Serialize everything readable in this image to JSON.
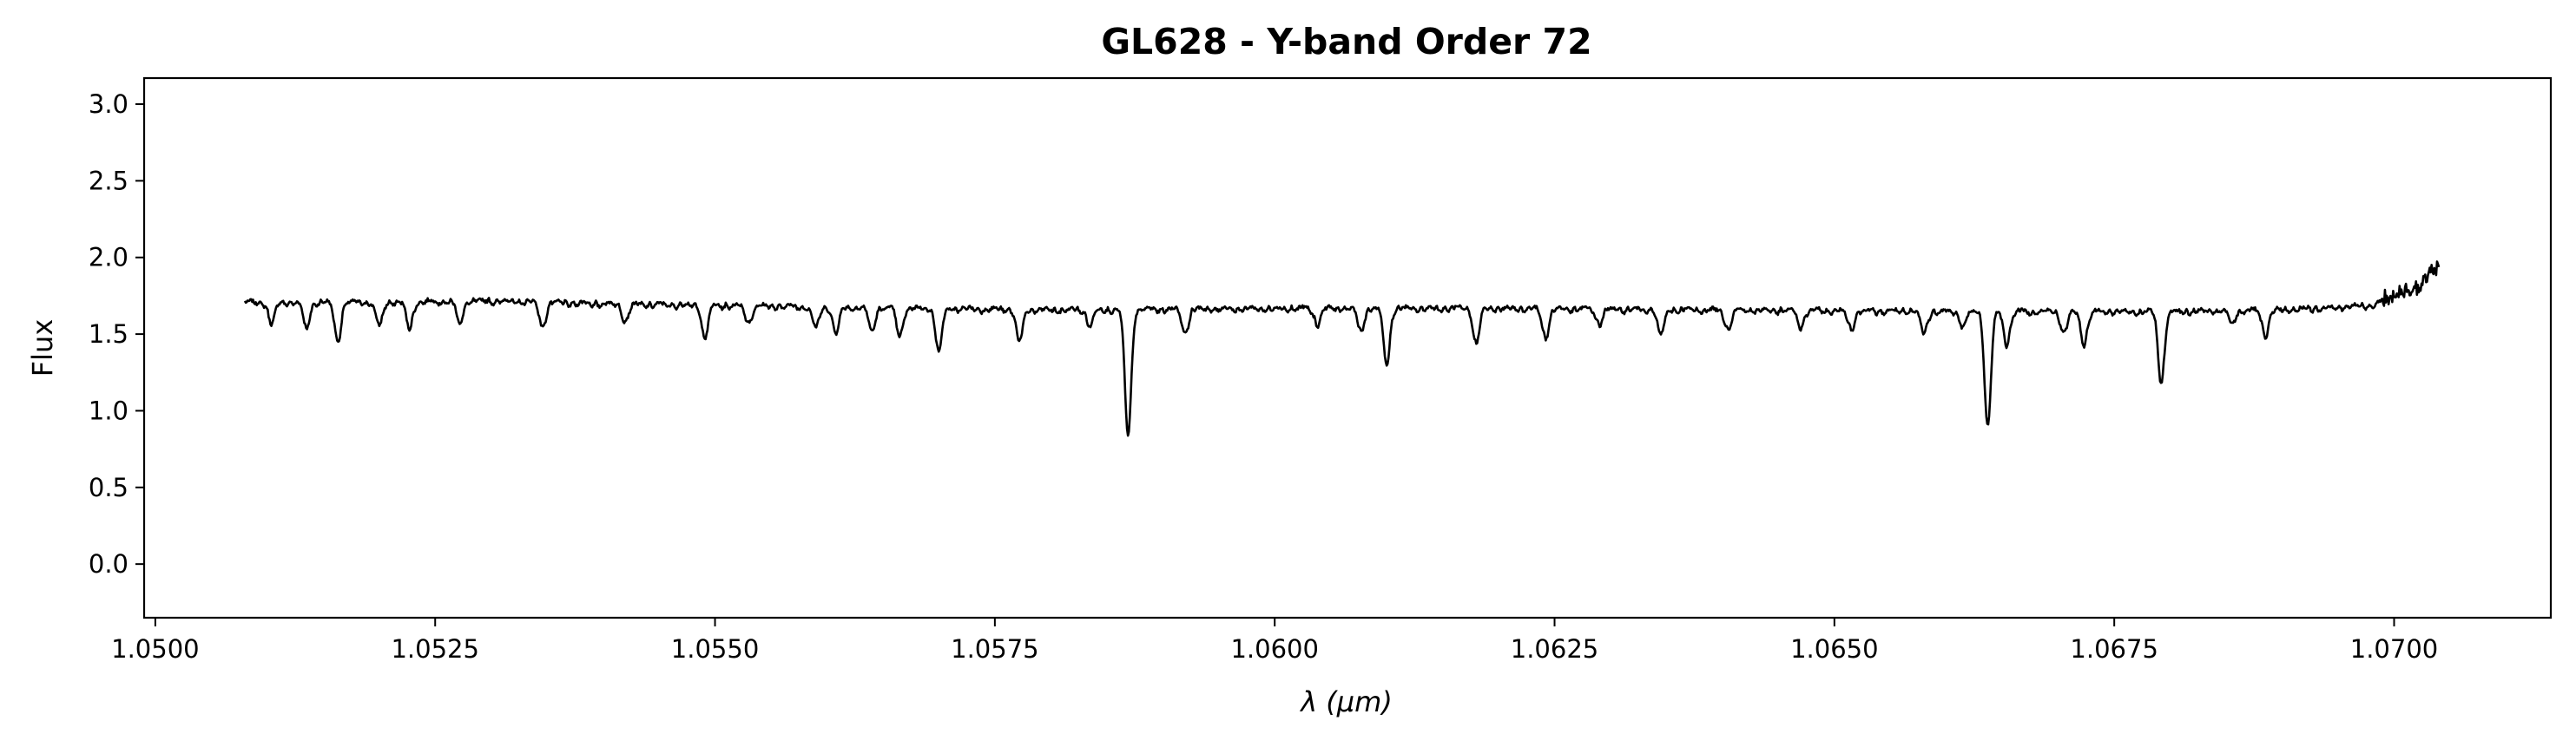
{
  "chart_data": {
    "type": "line",
    "title": "GL628 - Y-band Order 72",
    "xlabel": "λ (μm)",
    "ylabel": "Flux",
    "xlim": [
      1.0499,
      1.0714
    ],
    "ylim": [
      -0.35,
      3.17
    ],
    "xticks": [
      1.05,
      1.0525,
      1.055,
      1.0575,
      1.06,
      1.0625,
      1.065,
      1.0675,
      1.07
    ],
    "xtick_labels": [
      "1.0500",
      "1.0525",
      "1.0550",
      "1.0575",
      "1.0600",
      "1.0625",
      "1.0650",
      "1.0675",
      "1.0700"
    ],
    "yticks": [
      0.0,
      0.5,
      1.0,
      1.5,
      2.0,
      2.5,
      3.0
    ],
    "ytick_labels": [
      "0.0",
      "0.5",
      "1.0",
      "1.5",
      "2.0",
      "2.5",
      "3.0"
    ],
    "grid": false,
    "line_color": "#000000",
    "series": [
      {
        "x_start": 1.0508,
        "x_end": 1.0704,
        "continuum": [
          [
            1.0508,
            1.72
          ],
          [
            1.052,
            1.72
          ],
          [
            1.053,
            1.73
          ],
          [
            1.054,
            1.71
          ],
          [
            1.055,
            1.7
          ],
          [
            1.056,
            1.69
          ],
          [
            1.058,
            1.67
          ],
          [
            1.06,
            1.68
          ],
          [
            1.062,
            1.68
          ],
          [
            1.064,
            1.67
          ],
          [
            1.066,
            1.66
          ],
          [
            1.068,
            1.66
          ],
          [
            1.069,
            1.67
          ],
          [
            1.0698,
            1.7
          ],
          [
            1.0702,
            1.82
          ],
          [
            1.0704,
            1.96
          ]
        ],
        "absorption_lines": [
          [
            1.05869,
            0.85
          ],
          [
            1.06637,
            0.91
          ],
          [
            1.06792,
            1.2
          ],
          [
            1.061,
            1.32
          ],
          [
            1.057,
            1.4
          ],
          [
            1.05163,
            1.47
          ],
          [
            1.05491,
            1.49
          ],
          [
            1.05772,
            1.46
          ],
          [
            1.0618,
            1.45
          ],
          [
            1.06654,
            1.45
          ],
          [
            1.06723,
            1.45
          ],
          [
            1.06885,
            1.5
          ],
          [
            1.05665,
            1.5
          ],
          [
            1.06242,
            1.49
          ],
          [
            1.06345,
            1.5
          ],
          [
            1.0658,
            1.52
          ],
          [
            1.05135,
            1.55
          ],
          [
            1.052,
            1.56
          ],
          [
            1.05227,
            1.55
          ],
          [
            1.05346,
            1.56
          ],
          [
            1.05608,
            1.52
          ],
          [
            1.0564,
            1.53
          ],
          [
            1.0592,
            1.52
          ],
          [
            1.06077,
            1.53
          ],
          [
            1.06405,
            1.55
          ],
          [
            1.06515,
            1.55
          ],
          [
            1.06705,
            1.52
          ],
          [
            1.05104,
            1.58
          ],
          [
            1.05272,
            1.58
          ],
          [
            1.0559,
            1.55
          ],
          [
            1.05835,
            1.57
          ],
          [
            1.06038,
            1.58
          ],
          [
            1.0647,
            1.56
          ],
          [
            1.06615,
            1.56
          ],
          [
            1.06855,
            1.58
          ],
          [
            1.0542,
            1.6
          ],
          [
            1.0553,
            1.59
          ],
          [
            1.0629,
            1.58
          ]
        ]
      }
    ]
  }
}
